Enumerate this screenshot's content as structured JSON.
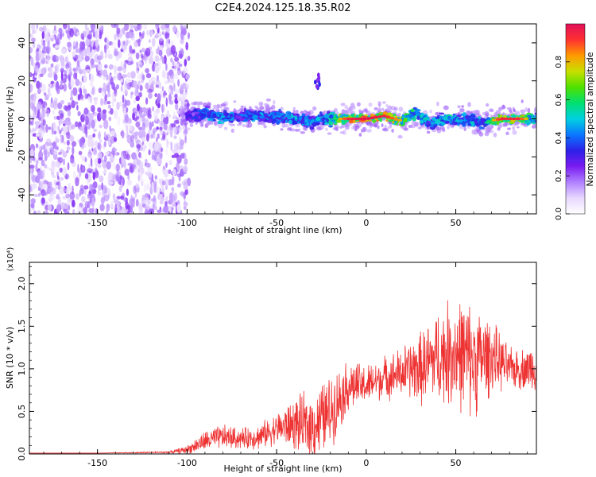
{
  "title": "C2E4.2024.125.18.35.R02",
  "colors": {
    "snr_line": "#ee3333",
    "background": "#ffffff",
    "scatter_purple": "#7a1cf0",
    "colormap": [
      "#ffffff",
      "#e8d8ff",
      "#b080ff",
      "#7a1cf0",
      "#2d20e8",
      "#0a78ff",
      "#00d0e0",
      "#00e070",
      "#50e000",
      "#c8e000",
      "#ff9a00",
      "#ff3030",
      "#e0105a"
    ]
  },
  "chart_data": [
    {
      "type": "heatmap",
      "xlabel": "Height of straight line (km)",
      "ylabel": "Frequency (Hz)",
      "xlim": [
        -188,
        95
      ],
      "ylim": [
        -50,
        50
      ],
      "xticks": [
        -150,
        -100,
        -50,
        0,
        50
      ],
      "yticks": [
        -40,
        -20,
        0,
        20,
        40
      ],
      "colorbar": {
        "label": "Normalized spectral amplitude",
        "range": [
          0,
          1
        ],
        "ticks": [
          0.0,
          0.2,
          0.4,
          0.6,
          0.8
        ]
      },
      "noise_region": {
        "x": [
          -188,
          -103
        ],
        "freq": [
          -50,
          50
        ],
        "amplitude": 0.2
      },
      "signal_trace": [
        {
          "x": -100,
          "freq": 1.5,
          "amp": 0.3
        },
        {
          "x": -90,
          "freq": 2.5,
          "amp": 0.45
        },
        {
          "x": -80,
          "freq": 1.0,
          "amp": 0.5
        },
        {
          "x": -70,
          "freq": 1.0,
          "amp": 0.4
        },
        {
          "x": -60,
          "freq": 2.0,
          "amp": 0.5
        },
        {
          "x": -50,
          "freq": 1.0,
          "amp": 0.45
        },
        {
          "x": -40,
          "freq": 0.0,
          "amp": 0.5
        },
        {
          "x": -30,
          "freq": -1.0,
          "amp": 0.45
        },
        {
          "x": -20,
          "freq": 0.0,
          "amp": 0.55
        },
        {
          "x": -10,
          "freq": 0.0,
          "amp": 0.85
        },
        {
          "x": 0,
          "freq": 0.0,
          "amp": 0.9
        },
        {
          "x": 10,
          "freq": 1.5,
          "amp": 0.85
        },
        {
          "x": 20,
          "freq": -1.0,
          "amp": 0.7
        },
        {
          "x": 28,
          "freq": 3.0,
          "amp": 0.55
        },
        {
          "x": 35,
          "freq": -2.5,
          "amp": 0.5
        },
        {
          "x": 45,
          "freq": 0.0,
          "amp": 0.55
        },
        {
          "x": 55,
          "freq": -0.5,
          "amp": 0.5
        },
        {
          "x": 65,
          "freq": -2.0,
          "amp": 0.5
        },
        {
          "x": 75,
          "freq": 0.0,
          "amp": 0.85
        },
        {
          "x": 85,
          "freq": 0.0,
          "amp": 0.85
        },
        {
          "x": 95,
          "freq": 0.0,
          "amp": 0.5
        }
      ],
      "isolated_blob": {
        "x": -27,
        "freq": 18,
        "amp": 0.3
      }
    },
    {
      "type": "line",
      "xlabel": "Height of straight line (km)",
      "ylabel": "SNR (10 * v/v)",
      "y_scale_label": "(x10⁴)",
      "xlim": [
        -188,
        95
      ],
      "ylim": [
        0,
        2.25
      ],
      "xticks": [
        -150,
        -100,
        -50,
        0,
        50
      ],
      "yticks": [
        0.0,
        0.5,
        1.0,
        1.5,
        2.0
      ],
      "series": [
        {
          "x": [
            -188,
            -150,
            -110,
            -100,
            -90,
            -80,
            -70,
            -60,
            -50,
            -40,
            -30,
            -20,
            -10,
            0,
            10,
            20,
            25,
            30,
            40,
            50,
            60,
            70,
            80,
            90,
            95
          ],
          "y": [
            0.01,
            0.01,
            0.02,
            0.05,
            0.15,
            0.2,
            0.18,
            0.2,
            0.3,
            0.35,
            0.32,
            0.5,
            0.8,
            0.8,
            0.9,
            0.95,
            1.0,
            1.0,
            1.15,
            1.2,
            1.1,
            1.15,
            1.0,
            1.0,
            1.05
          ],
          "spread": [
            0,
            0,
            0.01,
            0.04,
            0.1,
            0.12,
            0.1,
            0.12,
            0.15,
            0.25,
            0.35,
            0.35,
            0.25,
            0.2,
            0.2,
            0.25,
            0.3,
            0.35,
            0.45,
            0.55,
            0.55,
            0.35,
            0.2,
            0.2,
            0.25
          ]
        }
      ]
    }
  ]
}
